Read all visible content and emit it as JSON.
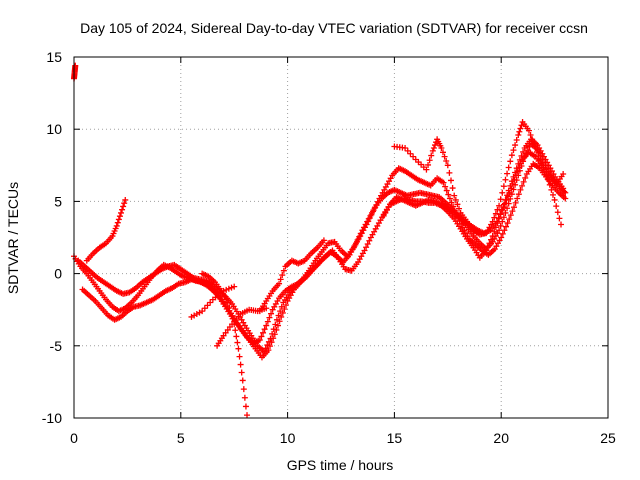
{
  "chart_data": {
    "type": "scatter",
    "title": "Day 105 of 2024, Sidereal Day-to-day VTEC variation (SDTVAR) for receiver ccsn",
    "xlabel": "GPS time / hours",
    "ylabel": "SDTVAR / TECUs",
    "xlim": [
      0,
      25
    ],
    "ylim": [
      -10,
      15
    ],
    "xticks": [
      0,
      5,
      10,
      15,
      20,
      25
    ],
    "yticks": [
      -10,
      -5,
      0,
      5,
      10,
      15
    ],
    "grid": true,
    "marker": "+",
    "marker_color": "#ff0000",
    "series": [
      {
        "x": [
          0.0,
          0.02,
          0.04,
          0.06
        ],
        "y": [
          13.5,
          13.8,
          14.1,
          14.4
        ]
      },
      {
        "x": [
          0.0,
          0.3,
          0.6,
          0.9,
          1.2,
          1.5,
          1.8,
          2.1,
          2.4,
          2.7,
          3.0,
          3.3,
          3.6,
          3.9,
          4.2,
          4.5,
          4.8,
          5.1,
          5.4,
          5.7,
          6.0,
          6.3,
          6.6,
          6.9,
          7.2,
          7.5,
          7.8,
          8.1,
          8.4,
          8.7,
          9.0,
          9.3,
          9.6,
          9.9,
          10.2,
          10.5,
          10.8,
          11.1,
          11.4,
          11.7,
          12.0,
          12.3,
          12.6,
          12.9,
          13.2,
          13.5,
          13.8,
          14.1,
          14.4,
          14.7,
          15.0,
          15.3,
          15.6,
          15.9,
          16.2,
          16.5,
          16.8,
          17.1,
          17.4,
          17.7,
          18.0,
          18.3,
          18.6,
          18.9,
          19.2,
          19.5,
          19.8,
          20.1,
          20.4,
          20.7,
          21.0,
          21.3,
          21.6,
          21.9,
          22.2,
          22.5,
          22.8,
          23.0
        ],
        "y": [
          1.2,
          0.5,
          0.0,
          -0.6,
          -1.2,
          -1.8,
          -2.3,
          -2.6,
          -2.4,
          -2.0,
          -1.5,
          -0.9,
          -0.3,
          0.2,
          0.6,
          0.4,
          0.1,
          -0.2,
          -0.3,
          -0.5,
          -0.6,
          -0.9,
          -1.3,
          -1.8,
          -2.4,
          -3.1,
          -3.8,
          -4.4,
          -4.8,
          -4.6,
          -3.6,
          -2.5,
          -1.7,
          -1.2,
          -0.9,
          -0.7,
          -0.3,
          0.2,
          0.6,
          1.1,
          1.5,
          1.2,
          0.8,
          1.3,
          2.1,
          3.0,
          3.8,
          4.6,
          5.2,
          5.6,
          5.8,
          5.6,
          5.4,
          5.5,
          5.6,
          5.5,
          5.4,
          5.3,
          4.9,
          4.5,
          4.0,
          3.6,
          3.3,
          3.0,
          2.8,
          3.0,
          3.6,
          4.6,
          5.6,
          6.8,
          7.9,
          8.4,
          8.1,
          7.5,
          6.9,
          6.4,
          5.9,
          5.6
        ]
      },
      {
        "x": [
          0.2,
          0.5,
          0.8,
          1.1,
          1.4,
          1.7,
          2.0,
          2.3,
          2.6,
          2.9,
          3.2,
          3.5,
          3.8,
          4.1,
          4.4,
          4.7,
          5.0,
          5.3,
          5.6,
          5.9,
          6.2,
          6.5,
          6.8,
          7.1,
          7.4,
          7.7,
          8.0,
          8.3,
          8.6,
          8.9,
          9.2,
          9.5,
          9.8,
          10.1,
          10.4,
          10.7,
          11.0,
          11.3,
          11.6,
          11.9,
          12.2,
          12.5,
          12.8,
          13.1,
          13.4,
          13.7,
          14.0,
          14.3,
          14.6,
          14.9,
          15.2,
          15.5,
          15.8,
          16.1,
          16.4,
          16.7,
          17.0,
          17.3,
          17.6,
          17.9,
          18.2,
          18.5,
          18.8,
          19.1,
          19.4,
          19.7,
          20.0,
          20.3,
          20.6,
          20.9,
          21.2,
          21.5,
          21.8,
          22.1,
          22.4,
          22.7,
          23.0
        ],
        "y": [
          0.9,
          0.5,
          0.1,
          -0.3,
          -0.6,
          -0.9,
          -1.2,
          -1.4,
          -1.3,
          -1.0,
          -0.6,
          -0.3,
          0.0,
          0.3,
          0.5,
          0.6,
          0.3,
          0.0,
          -0.3,
          -0.4,
          -0.5,
          -0.8,
          -1.2,
          -1.6,
          -2.1,
          -2.8,
          -3.6,
          -4.3,
          -5.0,
          -5.4,
          -4.5,
          -3.2,
          -2.0,
          -1.3,
          -0.8,
          -0.4,
          0.2,
          0.9,
          1.5,
          2.1,
          2.2,
          1.6,
          1.2,
          1.8,
          2.6,
          3.4,
          4.3,
          5.2,
          6.0,
          6.8,
          7.3,
          7.1,
          6.8,
          6.5,
          6.3,
          6.1,
          6.6,
          6.3,
          5.2,
          4.1,
          3.2,
          2.4,
          2.0,
          1.6,
          1.3,
          1.7,
          2.5,
          3.5,
          4.6,
          5.8,
          6.9,
          7.6,
          7.3,
          6.7,
          6.1,
          5.6,
          5.2
        ]
      },
      {
        "x": [
          0.4,
          0.7,
          1.0,
          1.3,
          1.6,
          1.9,
          2.2,
          2.5,
          2.8,
          3.1,
          3.4,
          3.7,
          4.0,
          4.3,
          4.6,
          4.9,
          5.2,
          5.5,
          5.8,
          6.1,
          6.4,
          6.7,
          7.0,
          7.3,
          7.6,
          7.9,
          8.2,
          8.5,
          8.8,
          9.1,
          9.4,
          9.7,
          10.0,
          10.3,
          10.6,
          10.9,
          11.2,
          11.5,
          11.8,
          12.1,
          12.4,
          12.7,
          13.0,
          13.3,
          13.6,
          13.9,
          14.2,
          14.5,
          14.8,
          15.1,
          15.4,
          15.7,
          16.0,
          16.3,
          16.6,
          16.9,
          17.2,
          17.5,
          17.8,
          18.1,
          18.4,
          18.7,
          19.0,
          19.3,
          19.6,
          19.9,
          20.2,
          20.5,
          20.8,
          21.1,
          21.4,
          21.7,
          22.0,
          22.3,
          22.6,
          22.9
        ],
        "y": [
          -1.1,
          -1.5,
          -1.9,
          -2.4,
          -2.9,
          -3.2,
          -3.0,
          -2.6,
          -2.3,
          -2.2,
          -2.0,
          -1.8,
          -1.5,
          -1.2,
          -1.0,
          -0.7,
          -0.6,
          -0.4,
          -0.5,
          -0.7,
          -0.9,
          -1.4,
          -2.1,
          -2.8,
          -3.4,
          -4.0,
          -4.6,
          -5.2,
          -5.8,
          -5.3,
          -4.2,
          -3.0,
          -1.9,
          -1.1,
          -0.6,
          -0.2,
          0.3,
          0.8,
          1.2,
          1.6,
          1.0,
          0.3,
          0.2,
          0.8,
          1.6,
          2.5,
          3.3,
          4.1,
          4.8,
          5.3,
          5.1,
          4.9,
          4.7,
          4.9,
          5.1,
          5.0,
          4.8,
          4.5,
          4.2,
          3.8,
          3.2,
          2.6,
          2.1,
          1.7,
          2.2,
          3.0,
          4.2,
          5.5,
          6.8,
          8.1,
          9.0,
          8.6,
          7.7,
          6.8,
          6.2,
          6.9
        ]
      },
      {
        "x": [
          0.6,
          0.9,
          1.2,
          1.5,
          1.8,
          2.0,
          2.2,
          2.4
        ],
        "y": [
          0.9,
          1.4,
          1.8,
          2.1,
          2.6,
          3.3,
          4.2,
          5.1
        ]
      },
      {
        "x": [
          6.0,
          6.3,
          6.6,
          6.9,
          7.2,
          7.5,
          7.7,
          7.9,
          8.1
        ],
        "y": [
          0.0,
          -0.2,
          -0.6,
          -1.2,
          -2.0,
          -3.5,
          -5.2,
          -7.4,
          -9.8
        ]
      },
      {
        "x": [
          5.5,
          6.0,
          6.5,
          7.0,
          7.5
        ],
        "y": [
          -3.0,
          -2.6,
          -1.8,
          -1.2,
          -0.9
        ]
      },
      {
        "x": [
          6.7,
          7.0,
          7.4,
          7.8,
          8.2,
          8.6,
          9.0
        ],
        "y": [
          -5.0,
          -4.3,
          -3.5,
          -2.8,
          -2.5,
          -2.6,
          -2.4
        ]
      },
      {
        "x": [
          8.7,
          9.0,
          9.3,
          9.6,
          9.9,
          10.2,
          10.5,
          10.8,
          11.1,
          11.4,
          11.7
        ],
        "y": [
          -2.6,
          -1.9,
          -1.2,
          -0.7,
          0.5,
          0.9,
          0.7,
          0.9,
          1.4,
          1.8,
          2.3
        ]
      },
      {
        "x": [
          14.5,
          14.8,
          15.1,
          15.4,
          15.7,
          16.0,
          16.3,
          16.6,
          16.9,
          17.2,
          17.5,
          17.8,
          18.1,
          18.4,
          18.7,
          19.0,
          19.3,
          19.6,
          19.9,
          20.2,
          20.5,
          20.8,
          21.1,
          21.4,
          21.7,
          22.0,
          22.3,
          22.6,
          22.9
        ],
        "y": [
          4.0,
          4.8,
          5.0,
          5.2,
          5.1,
          5.0,
          5.0,
          4.9,
          4.9,
          4.7,
          4.3,
          3.8,
          3.1,
          2.4,
          1.8,
          1.1,
          1.6,
          2.6,
          3.8,
          5.1,
          6.4,
          7.6,
          8.7,
          9.3,
          8.9,
          8.1,
          7.3,
          6.5,
          5.9
        ]
      },
      {
        "x": [
          15.0,
          15.5,
          16.0,
          16.5,
          16.8,
          17.0,
          17.2,
          17.5,
          17.8,
          18.1,
          18.4,
          18.7,
          19.0,
          19.3,
          19.6,
          19.9,
          20.2,
          20.5,
          20.8,
          21.0,
          21.3,
          21.6,
          21.9,
          22.2,
          22.5,
          22.8
        ],
        "y": [
          8.8,
          8.7,
          7.9,
          7.2,
          8.5,
          9.3,
          8.7,
          7.5,
          5.4,
          4.2,
          3.6,
          3.0,
          2.7,
          2.8,
          3.6,
          4.7,
          6.5,
          8.2,
          9.6,
          10.5,
          9.9,
          8.7,
          7.6,
          6.5,
          5.1,
          3.4
        ]
      }
    ]
  }
}
